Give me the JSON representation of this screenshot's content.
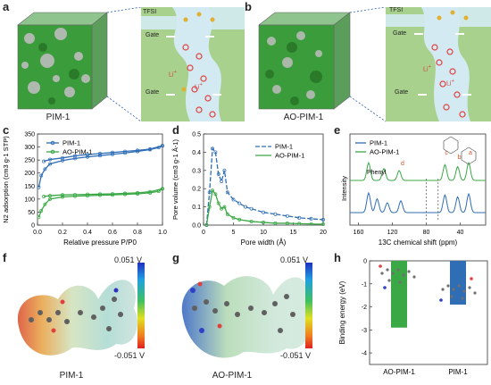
{
  "panels": {
    "a": {
      "letter": "a",
      "caption": "PIM-1",
      "tfsi": "TFSI",
      "gate_top": "Gate",
      "gate_bottom": "Gate",
      "li1": "Li",
      "li2": "Li",
      "plus": "+"
    },
    "b": {
      "letter": "b",
      "caption": "AO-PIM-1",
      "tfsi": "TFSI",
      "gate_top": "Gate",
      "gate_bottom": "Gate",
      "li1": "Li",
      "li2": "Li",
      "plus": "+"
    },
    "c": {
      "letter": "c"
    },
    "d": {
      "letter": "d"
    },
    "e": {
      "letter": "e",
      "phenyl": "Phenyl",
      "peak_d": "d",
      "peak_c": "c",
      "peak_b": "b",
      "peak_a": "a"
    },
    "f": {
      "letter": "f",
      "caption": "PIM-1",
      "scale_max": "0.051 V",
      "scale_min": "-0.051 V"
    },
    "g": {
      "letter": "g",
      "caption": "AO-PIM-1",
      "scale_max": "0.051 V",
      "scale_min": "-0.051 V"
    },
    "h": {
      "letter": "h"
    }
  },
  "colors": {
    "pim1": "#2f6db5",
    "aopim1": "#39a845",
    "cube_green": "#3a9c3a",
    "channel": "#cfe6ef"
  },
  "chart_data": [
    {
      "type": "line",
      "panel": "c",
      "xlabel": "Relative pressure P/P0",
      "ylabel": "N2 adsorption (cm3 g-1 STP)",
      "xlim": [
        0,
        1.0
      ],
      "ylim": [
        0,
        350
      ],
      "xticks": [
        "0.0",
        "0.2",
        "0.4",
        "0.6",
        "0.8",
        "1.0"
      ],
      "yticks": [
        "0",
        "50",
        "100",
        "150",
        "200",
        "250",
        "300",
        "350"
      ],
      "legend": [
        "PIM-1",
        "AO-PIM-1"
      ],
      "series": [
        {
          "name": "PIM-1",
          "adsorption": [
            [
              0.01,
              145
            ],
            [
              0.03,
              190
            ],
            [
              0.06,
              215
            ],
            [
              0.1,
              235
            ],
            [
              0.2,
              248
            ],
            [
              0.3,
              256
            ],
            [
              0.4,
              262
            ],
            [
              0.5,
              267
            ],
            [
              0.6,
              272
            ],
            [
              0.7,
              277
            ],
            [
              0.8,
              283
            ],
            [
              0.9,
              290
            ],
            [
              0.97,
              298
            ],
            [
              1.0,
              305
            ]
          ],
          "desorption": [
            [
              1.0,
              305
            ],
            [
              0.9,
              292
            ],
            [
              0.8,
              287
            ],
            [
              0.7,
              283
            ],
            [
              0.6,
              279
            ],
            [
              0.5,
              275
            ],
            [
              0.4,
              271
            ],
            [
              0.3,
              266
            ],
            [
              0.2,
              258
            ],
            [
              0.1,
              252
            ],
            [
              0.05,
              245
            ]
          ]
        },
        {
          "name": "AO-PIM-1",
          "adsorption": [
            [
              0.01,
              30
            ],
            [
              0.03,
              55
            ],
            [
              0.06,
              80
            ],
            [
              0.1,
              100
            ],
            [
              0.2,
              108
            ],
            [
              0.3,
              111
            ],
            [
              0.4,
              113
            ],
            [
              0.5,
              115
            ],
            [
              0.6,
              116
            ],
            [
              0.7,
              118
            ],
            [
              0.8,
              120
            ],
            [
              0.9,
              124
            ],
            [
              0.97,
              130
            ],
            [
              1.0,
              140
            ]
          ],
          "desorption": [
            [
              1.0,
              140
            ],
            [
              0.9,
              128
            ],
            [
              0.8,
              124
            ],
            [
              0.7,
              122
            ],
            [
              0.6,
              120
            ],
            [
              0.5,
              119
            ],
            [
              0.4,
              118
            ],
            [
              0.3,
              117
            ],
            [
              0.2,
              116
            ],
            [
              0.1,
              113
            ],
            [
              0.05,
              110
            ]
          ]
        }
      ]
    },
    {
      "type": "line",
      "panel": "d",
      "xlabel": "Pore width (Å)",
      "ylabel": "Pore volume (cm3 g-1 Å-1)",
      "xlim": [
        0,
        20
      ],
      "ylim": [
        0,
        0.5
      ],
      "xticks": [
        "0",
        "5",
        "10",
        "15",
        "20"
      ],
      "yticks": [
        "0.0",
        "0.1",
        "0.2",
        "0.3",
        "0.4",
        "0.5"
      ],
      "legend": [
        "PIM-1",
        "AO-PIM-1"
      ],
      "series": [
        {
          "name": "PIM-1",
          "points": [
            [
              0.5,
              0.0
            ],
            [
              1.0,
              0.18
            ],
            [
              1.5,
              0.42
            ],
            [
              2.0,
              0.4
            ],
            [
              2.5,
              0.28
            ],
            [
              3.0,
              0.24
            ],
            [
              3.5,
              0.3
            ],
            [
              4.0,
              0.18
            ],
            [
              5.0,
              0.14
            ],
            [
              6.0,
              0.12
            ],
            [
              7.0,
              0.1
            ],
            [
              8.0,
              0.09
            ],
            [
              10,
              0.07
            ],
            [
              12,
              0.06
            ],
            [
              14,
              0.05
            ],
            [
              16,
              0.04
            ],
            [
              18,
              0.035
            ],
            [
              20,
              0.03
            ]
          ]
        },
        {
          "name": "AO-PIM-1",
          "points": [
            [
              0.5,
              0.0
            ],
            [
              1.0,
              0.1
            ],
            [
              1.5,
              0.19
            ],
            [
              2.0,
              0.17
            ],
            [
              2.5,
              0.12
            ],
            [
              3.0,
              0.09
            ],
            [
              3.5,
              0.1
            ],
            [
              4.0,
              0.06
            ],
            [
              5.0,
              0.04
            ],
            [
              6.0,
              0.03
            ],
            [
              8.0,
              0.02
            ],
            [
              10,
              0.015
            ],
            [
              12,
              0.01
            ],
            [
              14,
              0.01
            ],
            [
              16,
              0.008
            ],
            [
              18,
              0.006
            ],
            [
              20,
              0.005
            ]
          ]
        }
      ]
    },
    {
      "type": "line",
      "panel": "e",
      "xlabel": "13C chemical shift (ppm)",
      "ylabel": "Intensity",
      "xlim": [
        170,
        10
      ],
      "xticks": [
        "160",
        "120",
        "80",
        "40"
      ],
      "legend": [
        "PIM-1",
        "AO-PIM-1"
      ],
      "peak_labels": [
        "Phenyl",
        "d",
        "c",
        "b",
        "a"
      ],
      "series": [
        {
          "name": "PIM-1",
          "peaks": [
            [
              148,
              1.0
            ],
            [
              138,
              0.7
            ],
            [
              126,
              0.5
            ],
            [
              110,
              0.6
            ],
            [
              58,
              0.9
            ],
            [
              43,
              0.8
            ],
            [
              30,
              0.95
            ]
          ]
        },
        {
          "name": "AO-PIM-1",
          "peaks": [
            [
              148,
              0.9
            ],
            [
              130,
              0.6
            ],
            [
              112,
              0.5
            ],
            [
              58,
              0.8
            ],
            [
              43,
              0.7
            ],
            [
              30,
              0.9
            ]
          ]
        }
      ]
    },
    {
      "type": "bar",
      "panel": "h",
      "ylabel": "Binding energy (eV)",
      "categories": [
        "AO-PIM-1",
        "PIM-1"
      ],
      "values": [
        -2.9,
        -1.9
      ],
      "ylim": [
        0,
        -4.5
      ],
      "yticks": [
        "0",
        "-1",
        "-2",
        "-3",
        "-4"
      ],
      "colors": [
        "#39a845",
        "#2f6db5"
      ]
    }
  ]
}
